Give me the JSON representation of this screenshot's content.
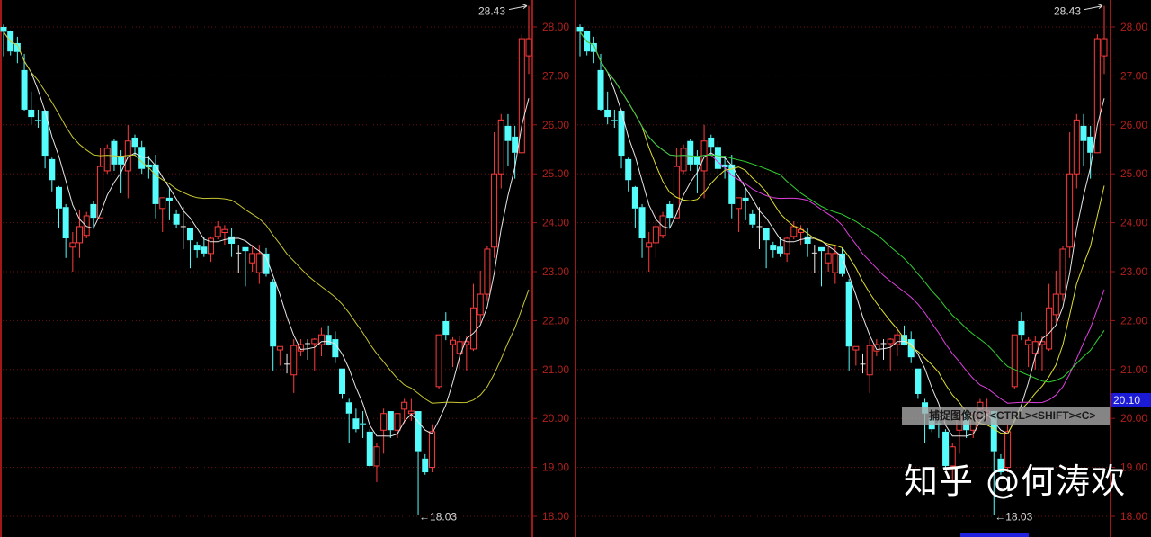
{
  "chart_data": [
    {
      "type": "candlestick",
      "panel": "left",
      "ylim": [
        18.0,
        28.0
      ],
      "yticks": [
        "18.00",
        "19.00",
        "20.00",
        "21.00",
        "22.00",
        "23.00",
        "24.00",
        "25.00",
        "26.00",
        "27.00",
        "28.00"
      ],
      "grid": true,
      "annotations": {
        "high": "28.43",
        "low": "←18.03"
      },
      "ma_colors": [
        "#e8e8e8",
        "#c8c832"
      ],
      "candles_ohlc": "shared"
    },
    {
      "type": "candlestick",
      "panel": "right",
      "ylim": [
        18.0,
        28.0
      ],
      "yticks": [
        "18.00",
        "19.00",
        "20.00",
        "21.00",
        "22.00",
        "23.00",
        "24.00",
        "25.00",
        "26.00",
        "27.00",
        "28.00"
      ],
      "grid": true,
      "annotations": {
        "high": "28.43",
        "low": "←18.03",
        "current_price": "20.10"
      },
      "ma_colors": [
        "#e8e8e8",
        "#e0e030",
        "#e040e0",
        "#30d030"
      ],
      "candles_ohlc": "shared"
    }
  ],
  "candles": [
    [
      28.0,
      28.05,
      27.4,
      27.9
    ],
    [
      27.91,
      27.93,
      27.42,
      27.5
    ],
    [
      27.67,
      27.8,
      27.26,
      27.49
    ],
    [
      27.12,
      27.45,
      26.29,
      26.31
    ],
    [
      26.31,
      26.68,
      26.01,
      26.16
    ],
    [
      26.1,
      26.31,
      25.94,
      26.08
    ],
    [
      26.29,
      26.31,
      25.11,
      25.37
    ],
    [
      25.3,
      25.33,
      24.64,
      24.87
    ],
    [
      24.73,
      24.75,
      23.9,
      24.29
    ],
    [
      24.32,
      24.38,
      23.28,
      23.68
    ],
    [
      23.5,
      23.81,
      23.0,
      23.59
    ],
    [
      23.59,
      24.27,
      23.28,
      23.92
    ],
    [
      23.74,
      24.22,
      23.68,
      24.14
    ],
    [
      24.38,
      24.45,
      23.9,
      24.1
    ],
    [
      24.1,
      25.52,
      24.1,
      25.15
    ],
    [
      25.06,
      25.6,
      25.0,
      25.52
    ],
    [
      25.67,
      25.72,
      25.06,
      25.19
    ],
    [
      25.37,
      25.48,
      24.6,
      25.19
    ],
    [
      25.06,
      26.0,
      24.5,
      25.67
    ],
    [
      25.74,
      25.8,
      25.37,
      25.55
    ],
    [
      25.55,
      25.67,
      25.0,
      25.1
    ],
    [
      25.19,
      25.37,
      24.9,
      25.13
    ],
    [
      25.19,
      25.39,
      24.09,
      24.38
    ],
    [
      24.29,
      24.51,
      23.81,
      24.51
    ],
    [
      24.51,
      24.7,
      24.05,
      24.45
    ],
    [
      24.18,
      24.27,
      23.9,
      23.96
    ],
    [
      23.92,
      24.32,
      23.46,
      23.92
    ],
    [
      23.9,
      23.9,
      23.07,
      23.64
    ],
    [
      23.55,
      23.61,
      23.28,
      23.44
    ],
    [
      23.51,
      23.7,
      23.3,
      23.37
    ],
    [
      23.37,
      23.72,
      23.2,
      23.68
    ],
    [
      23.72,
      24.03,
      23.66,
      23.92
    ],
    [
      23.8,
      23.95,
      23.55,
      23.86
    ],
    [
      23.72,
      23.9,
      23.3,
      23.57
    ],
    [
      23.37,
      23.55,
      22.98,
      23.38
    ],
    [
      23.5,
      23.5,
      22.7,
      23.42
    ],
    [
      23.18,
      23.55,
      23.0,
      23.37
    ],
    [
      22.98,
      23.55,
      22.75,
      23.37
    ],
    [
      23.37,
      23.48,
      22.9,
      22.95
    ],
    [
      22.8,
      22.85,
      20.98,
      21.47
    ],
    [
      21.4,
      21.47,
      21.08,
      21.47
    ],
    [
      21.11,
      21.33,
      20.92,
      21.11
    ],
    [
      20.89,
      21.62,
      20.52,
      21.49
    ],
    [
      21.38,
      21.62,
      21.27,
      21.51
    ],
    [
      21.52,
      21.62,
      21.2,
      21.53
    ],
    [
      21.53,
      21.64,
      20.98,
      21.62
    ],
    [
      21.51,
      21.85,
      21.27,
      21.71
    ],
    [
      21.71,
      21.9,
      21.49,
      21.51
    ],
    [
      21.62,
      21.78,
      21.13,
      21.25
    ],
    [
      21.02,
      21.02,
      20.4,
      20.5
    ],
    [
      20.33,
      20.4,
      19.5,
      20.1
    ],
    [
      20.0,
      20.2,
      19.72,
      19.78
    ],
    [
      19.9,
      20.15,
      19.6,
      19.88
    ],
    [
      19.73,
      19.78,
      19.0,
      19.03
    ],
    [
      19.03,
      19.5,
      18.7,
      19.42
    ],
    [
      19.76,
      20.2,
      19.28,
      20.1
    ],
    [
      20.15,
      20.15,
      19.6,
      19.76
    ],
    [
      19.76,
      20.1,
      19.6,
      20.1
    ],
    [
      20.19,
      20.4,
      19.9,
      20.33
    ],
    [
      20.1,
      20.4,
      19.95,
      20.15
    ],
    [
      20.15,
      20.15,
      18.03,
      19.33
    ],
    [
      19.18,
      19.27,
      18.85,
      18.9
    ],
    [
      19.0,
      19.88,
      18.9,
      19.73
    ],
    [
      20.65,
      21.71,
      20.6,
      21.71
    ],
    [
      21.99,
      22.17,
      21.6,
      21.71
    ],
    [
      21.51,
      21.66,
      21.05,
      21.6
    ],
    [
      21.33,
      21.68,
      21.0,
      21.57
    ],
    [
      21.51,
      21.68,
      20.98,
      21.57
    ],
    [
      21.42,
      22.75,
      21.38,
      22.26
    ],
    [
      22.12,
      23.02,
      21.95,
      22.54
    ],
    [
      22.54,
      23.53,
      22.4,
      23.46
    ],
    [
      23.5,
      25.85,
      23.28,
      25.0
    ],
    [
      25.0,
      26.22,
      24.7,
      26.1
    ],
    [
      25.98,
      26.22,
      25.15,
      25.67
    ],
    [
      25.76,
      25.98,
      24.9,
      25.43
    ],
    [
      25.43,
      27.85,
      25.43,
      27.76
    ],
    [
      27.41,
      28.43,
      27.04,
      27.76
    ]
  ],
  "colors": {
    "up": "#ff3c3c",
    "down": "#54fcfc",
    "doji": "#f0f0f0",
    "grid": "#6a1010",
    "axis": "#a01818",
    "background": "#000000"
  },
  "overlay": {
    "tooltip": "捕捉图像(C) <CTRL><SHIFT><C>"
  },
  "watermark": "知乎 @何涛欢"
}
